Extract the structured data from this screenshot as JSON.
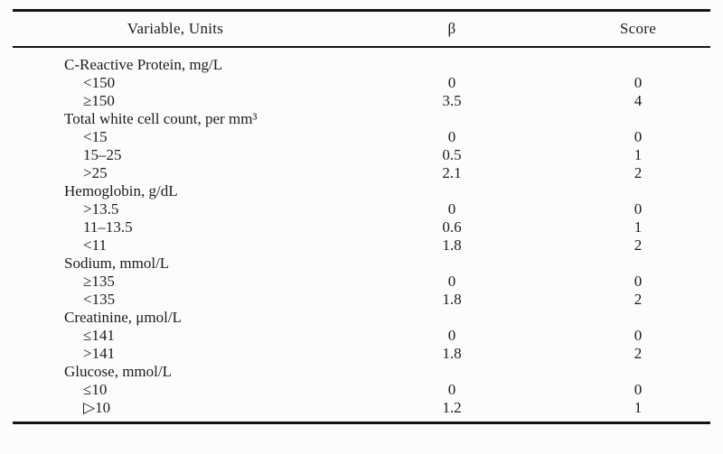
{
  "table": {
    "columns": [
      "Variable, Units",
      "β",
      "Score"
    ],
    "groups": [
      {
        "label": "C-Reactive Protein, mg/L",
        "rows": [
          {
            "range": "<150",
            "beta": "0",
            "score": "0"
          },
          {
            "range": "≥150",
            "beta": "3.5",
            "score": "4"
          }
        ]
      },
      {
        "label": "Total white cell count, per mm³",
        "rows": [
          {
            "range": "<15",
            "beta": "0",
            "score": "0"
          },
          {
            "range": "15–25",
            "beta": "0.5",
            "score": "1"
          },
          {
            "range": ">25",
            "beta": "2.1",
            "score": "2"
          }
        ]
      },
      {
        "label": "Hemoglobin, g/dL",
        "rows": [
          {
            "range": ">13.5",
            "beta": "0",
            "score": "0"
          },
          {
            "range": "11–13.5",
            "beta": "0.6",
            "score": "1"
          },
          {
            "range": "<11",
            "beta": "1.8",
            "score": "2"
          }
        ]
      },
      {
        "label": "Sodium, mmol/L",
        "rows": [
          {
            "range": "≥135",
            "beta": "0",
            "score": "0"
          },
          {
            "range": "<135",
            "beta": "1.8",
            "score": "2"
          }
        ]
      },
      {
        "label": "Creatinine, μmol/L",
        "rows": [
          {
            "range": "≤141",
            "beta": "0",
            "score": "0"
          },
          {
            "range": ">141",
            "beta": "1.8",
            "score": "2"
          }
        ]
      },
      {
        "label": "Glucose, mmol/L",
        "rows": [
          {
            "range": "≤10",
            "beta": "0",
            "score": "0"
          },
          {
            "range": "▷10",
            "beta": "1.2",
            "score": "1"
          }
        ]
      }
    ]
  },
  "colors": {
    "background": "#fcfcfb",
    "text": "#1c1c1c",
    "rule": "#151515"
  }
}
